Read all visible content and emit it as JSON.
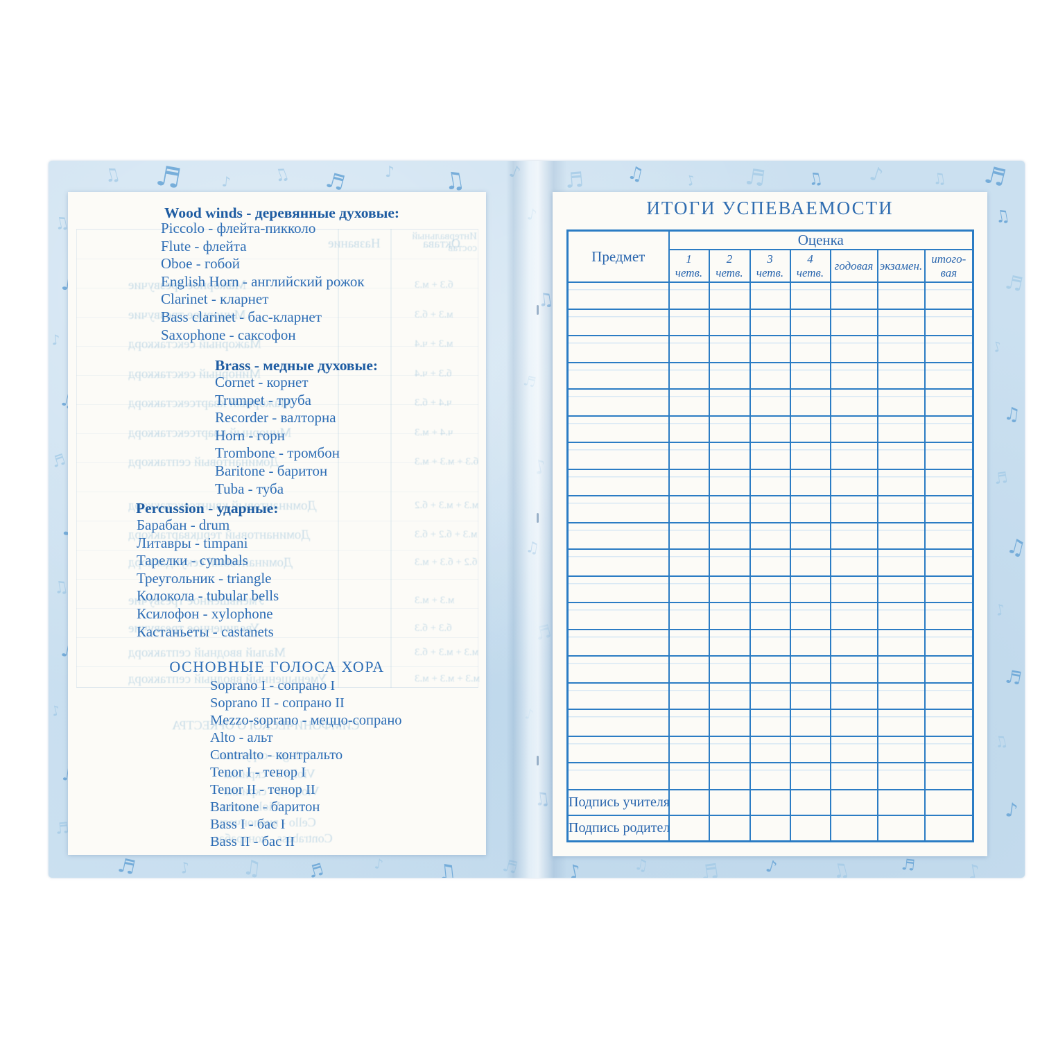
{
  "left_page": {
    "sections": [
      {
        "heading": "Wood winds - деревянные духовые:",
        "items": [
          "Piccolo - флейта-пикколо",
          "Flute - флейта",
          "Oboe - гобой",
          "English Horn - английский рожок",
          "Clarinet - кларнет",
          "Bass clarinet - бас-кларнет",
          "Saxophone - саксофон"
        ]
      },
      {
        "heading": "Brass - медные духовые:",
        "items": [
          "Cornet - корнет",
          "Trumpet - труба",
          "Recorder - валторна",
          "Horn - горн",
          "Trombone - тромбон",
          "Baritone - баритон",
          "Tuba - туба"
        ]
      },
      {
        "heading": "Percussion - ударные:",
        "items": [
          "Барабан - drum",
          "Литавры - timpani",
          "Тарелки - cymbals",
          "Треугольник - triangle",
          "Колокола - tubular bells",
          "Ксилофон - xylophone",
          "Кастаньеты - castanets"
        ]
      }
    ],
    "choir_heading": "ОСНОВНЫЕ ГОЛОСА ХОРА",
    "choir_items": [
      "Soprano I - сопрано I",
      "Soprano II - сопрано II",
      "Mezzo-soprano - меццо-сопрано",
      "Alto - альт",
      "Contralto - контральто",
      "Tenor I - тенор I",
      "Tenor II - тенор II",
      "Baritone - баритон",
      "Bass I - бас I",
      "Bass II - бас II"
    ],
    "show_through": {
      "table_header": [
        "Название",
        "Октава",
        "Интервальный состав"
      ],
      "rows": [
        {
          "name": "Мажорное трезвучие",
          "formula": "б.3 + м.3"
        },
        {
          "name": "Минорное трезвучие",
          "formula": "м.3 + б.3"
        },
        {
          "name": "Мажорный секстаккорд",
          "formula": "м.3 + ч.4"
        },
        {
          "name": "Минорный секстаккорд",
          "formula": "б.3 + ч.4"
        },
        {
          "name": "Мажорный квартсекстаккорд",
          "formula": "ч.4 + б.3"
        },
        {
          "name": "Минорный квартсекстаккорд",
          "formula": "ч.4 + м.3"
        },
        {
          "name": "Доминантовый септаккорд",
          "formula": "б.3 + м.3 + м.3"
        },
        {
          "name": "Доминантовый квинтсекстаккорд",
          "formula": "м.3 + м.3 + б.2"
        },
        {
          "name": "Доминантовый терцквартаккорд",
          "formula": "м.3 + б.2 + б.3"
        },
        {
          "name": "Доминантовый секундаккорд",
          "formula": "б.2 + б.3 + м.3"
        },
        {
          "name": "Уменьшенное трезвучие",
          "formula": "м.3 + м.3"
        },
        {
          "name": "Увеличенное трезвучие",
          "formula": "б.3 + б.3"
        },
        {
          "name": "Малый вводный септаккорд",
          "formula": "м.3 + м.3 + б.3"
        },
        {
          "name": "Уменьшенный вводный септаккорд",
          "formula": "м.3 + м.3 + м.3"
        }
      ],
      "bottom_lines": [
        "СИМФОНИЧЕСКОГО ОРКЕСТРА",
        "Strings - струнные:",
        "Violin I - скрипка",
        "Violin II - скрипка",
        "Viola - альт",
        "Cello - виолончель",
        "Contrabass - контрабас"
      ]
    }
  },
  "right_page": {
    "title": "ИТОГИ УСПЕВАЕМОСТИ",
    "table": {
      "subject_col": "Предмет",
      "grade_group": "Оценка",
      "grade_cols": [
        "1\nчетв.",
        "2\nчетв.",
        "3\nчетв.",
        "4\nчетв.",
        "годовая",
        "экзамен.",
        "итого-\nвая"
      ],
      "empty_rows": 19,
      "signature_rows": [
        "Подпись учителя",
        "Подпись родителей"
      ]
    }
  },
  "decor": {
    "note_glyphs": [
      "♪",
      "♫",
      "♬",
      "♩"
    ]
  },
  "colors": {
    "cover": "#cbe0f0",
    "table_border": "#2b7cc4",
    "body_text": "#2d6db5",
    "heading_text": "#1e5ca2",
    "title_text": "#2e6cb0",
    "faint_rule": "#d9e8f4",
    "ghost_text": "#83b4d3",
    "note_light": "#a4cbe7",
    "note_medium": "#67a4d6"
  }
}
